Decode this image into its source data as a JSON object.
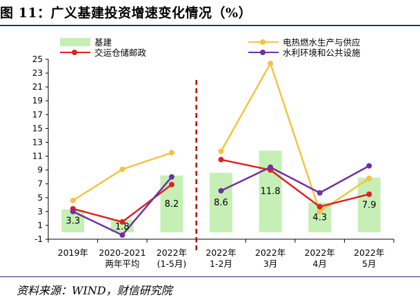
{
  "page": {
    "title": "图 11：广义基建投资增速变化情况（%）",
    "source": "资料来源：WIND，财信研究院"
  },
  "chart_data": {
    "type": "bar",
    "categories": [
      [
        "2019年"
      ],
      [
        "2020-2021",
        "两年平均"
      ],
      [
        "2022年",
        "(1-5月)"
      ],
      [
        "2022年",
        "1-2月"
      ],
      [
        "2022年",
        "3月"
      ],
      [
        "2022年",
        "4月"
      ],
      [
        "2022年",
        "5月"
      ]
    ],
    "ylim": [
      -1,
      25
    ],
    "yticks": [
      -1,
      1,
      3,
      5,
      7,
      9,
      11,
      13,
      15,
      17,
      19,
      21,
      23,
      25
    ],
    "divider_after_category": 2,
    "series": [
      {
        "name": "基建",
        "kind": "bar",
        "color": "#c6efb5",
        "values": [
          3.3,
          1.8,
          8.2,
          8.6,
          11.8,
          4.3,
          7.9
        ],
        "labels": [
          "3.3",
          "1.8",
          "8.2",
          "8.6",
          "11.8",
          "4.3",
          "7.9"
        ]
      },
      {
        "name": "电热燃水生产与供应",
        "kind": "line",
        "color": "#f5c242",
        "values": [
          4.6,
          9.1,
          11.5,
          11.7,
          24.4,
          3.0,
          7.8
        ]
      },
      {
        "name": "交运仓储邮政",
        "kind": "line",
        "color": "#e02020",
        "values": [
          3.4,
          1.5,
          6.9,
          10.5,
          9.0,
          3.7,
          5.5
        ]
      },
      {
        "name": "水利环境和公共设施",
        "kind": "line",
        "color": "#7030a0",
        "values": [
          3.0,
          -0.4,
          8.0,
          6.0,
          9.4,
          5.7,
          9.6
        ]
      }
    ],
    "segments": [
      [
        0,
        1,
        2
      ],
      [
        3,
        4,
        5,
        6
      ]
    ],
    "legend": "top"
  }
}
